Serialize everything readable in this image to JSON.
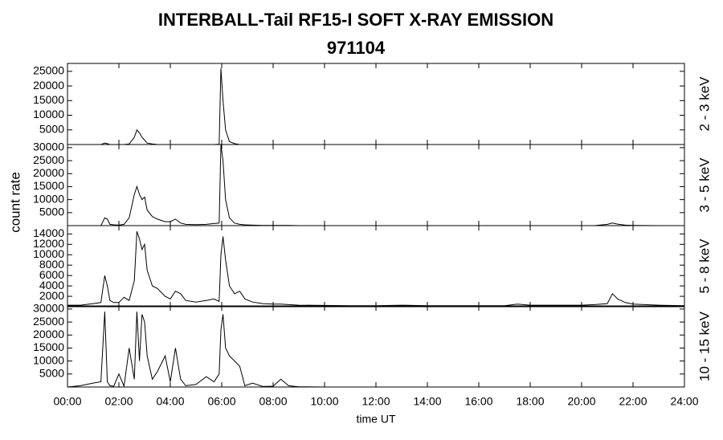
{
  "chart_data": {
    "type": "line",
    "title": "INTERBALL-Tail RF15-I SOFT X-RAY EMISSION",
    "subtitle": "971104",
    "xlabel": "time UT",
    "ylabel": "count rate",
    "color": "#000000",
    "xlim": [
      0,
      24
    ],
    "xticks": [
      {
        "value": 0,
        "label": "00:00"
      },
      {
        "value": 2,
        "label": "02:00"
      },
      {
        "value": 4,
        "label": "04:00"
      },
      {
        "value": 6,
        "label": "06:00"
      },
      {
        "value": 8,
        "label": "08:00"
      },
      {
        "value": 10,
        "label": "10:00"
      },
      {
        "value": 12,
        "label": "12:00"
      },
      {
        "value": 14,
        "label": "14:00"
      },
      {
        "value": 16,
        "label": "16:00"
      },
      {
        "value": 18,
        "label": "18:00"
      },
      {
        "value": 20,
        "label": "20:00"
      },
      {
        "value": 22,
        "label": "22:00"
      },
      {
        "value": 24,
        "label": "24:00"
      }
    ],
    "x": [
      0,
      0.5,
      1,
      1.3,
      1.45,
      1.55,
      1.65,
      1.8,
      2,
      2.2,
      2.4,
      2.6,
      2.7,
      2.8,
      2.9,
      3,
      3.1,
      3.3,
      3.5,
      3.8,
      4,
      4.2,
      4.4,
      4.6,
      5,
      5.4,
      5.7,
      5.9,
      5.97,
      6.05,
      6.15,
      6.3,
      6.5,
      6.7,
      6.9,
      7.2,
      7.6,
      8,
      8.3,
      8.6,
      9,
      10,
      11,
      12,
      13,
      14,
      15,
      16,
      17,
      17.5,
      18,
      19,
      20,
      20.5,
      21,
      21.2,
      21.4,
      21.7,
      22,
      23,
      24
    ],
    "panels": [
      {
        "label": "2 - 3 keV",
        "ylim": [
          0,
          27700
        ],
        "yticks": [
          5000,
          10000,
          15000,
          20000,
          25000
        ],
        "values": [
          0,
          0,
          0,
          0,
          500,
          300,
          0,
          0,
          0,
          0,
          200,
          2500,
          5000,
          4000,
          2500,
          1500,
          500,
          200,
          0,
          0,
          0,
          0,
          0,
          0,
          0,
          0,
          0,
          100,
          26000,
          15000,
          5000,
          1000,
          300,
          0,
          0,
          0,
          0,
          0,
          0,
          0,
          0,
          0,
          0,
          0,
          0,
          0,
          0,
          0,
          0,
          0,
          0,
          0,
          0,
          0,
          0,
          0,
          0,
          0,
          0,
          0,
          0
        ]
      },
      {
        "label": "3 - 5 keV",
        "ylim": [
          0,
          31200
        ],
        "yticks": [
          5000,
          10000,
          15000,
          20000,
          25000,
          30000
        ],
        "values": [
          0,
          0,
          0,
          0,
          3000,
          2500,
          500,
          300,
          200,
          500,
          3000,
          12000,
          15000,
          12000,
          10000,
          11000,
          6000,
          3500,
          2500,
          1500,
          1500,
          2500,
          1000,
          500,
          400,
          500,
          800,
          1000,
          31000,
          25000,
          10000,
          3000,
          1000,
          500,
          300,
          200,
          100,
          100,
          100,
          50,
          0,
          0,
          0,
          0,
          0,
          0,
          0,
          0,
          0,
          0,
          0,
          0,
          0,
          0,
          500,
          1000,
          600,
          200,
          100,
          0,
          0
        ]
      },
      {
        "label": "5 - 8 keV",
        "ylim": [
          0,
          15600
        ],
        "yticks": [
          2000,
          4000,
          6000,
          8000,
          10000,
          12000,
          14000
        ],
        "values": [
          300,
          300,
          600,
          800,
          6000,
          4000,
          1200,
          800,
          800,
          1800,
          1200,
          5000,
          14500,
          13000,
          11000,
          12000,
          7000,
          4000,
          3500,
          2000,
          1500,
          3000,
          2500,
          1200,
          900,
          1200,
          1500,
          1000,
          10000,
          13500,
          9000,
          4000,
          2500,
          3000,
          1500,
          900,
          600,
          500,
          500,
          400,
          300,
          250,
          200,
          200,
          300,
          200,
          200,
          200,
          200,
          500,
          300,
          300,
          300,
          400,
          600,
          2500,
          1500,
          800,
          500,
          300,
          200
        ]
      },
      {
        "label": "10 - 15 keV",
        "ylim": [
          0,
          31200
        ],
        "yticks": [
          5000,
          10000,
          15000,
          20000,
          25000,
          30000
        ],
        "values": [
          0,
          500,
          1500,
          2000,
          29000,
          2000,
          500,
          300,
          5000,
          300,
          15000,
          3000,
          29000,
          10000,
          28000,
          25000,
          12000,
          3000,
          6000,
          12000,
          2000,
          15000,
          3000,
          500,
          1000,
          4000,
          2000,
          5000,
          22000,
          28000,
          15000,
          12000,
          10000,
          8000,
          500,
          1500,
          200,
          300,
          3000,
          500,
          100,
          0,
          0,
          0,
          0,
          0,
          0,
          0,
          0,
          0,
          0,
          0,
          0,
          0,
          0,
          0,
          0,
          0,
          0,
          0,
          0
        ]
      }
    ]
  }
}
